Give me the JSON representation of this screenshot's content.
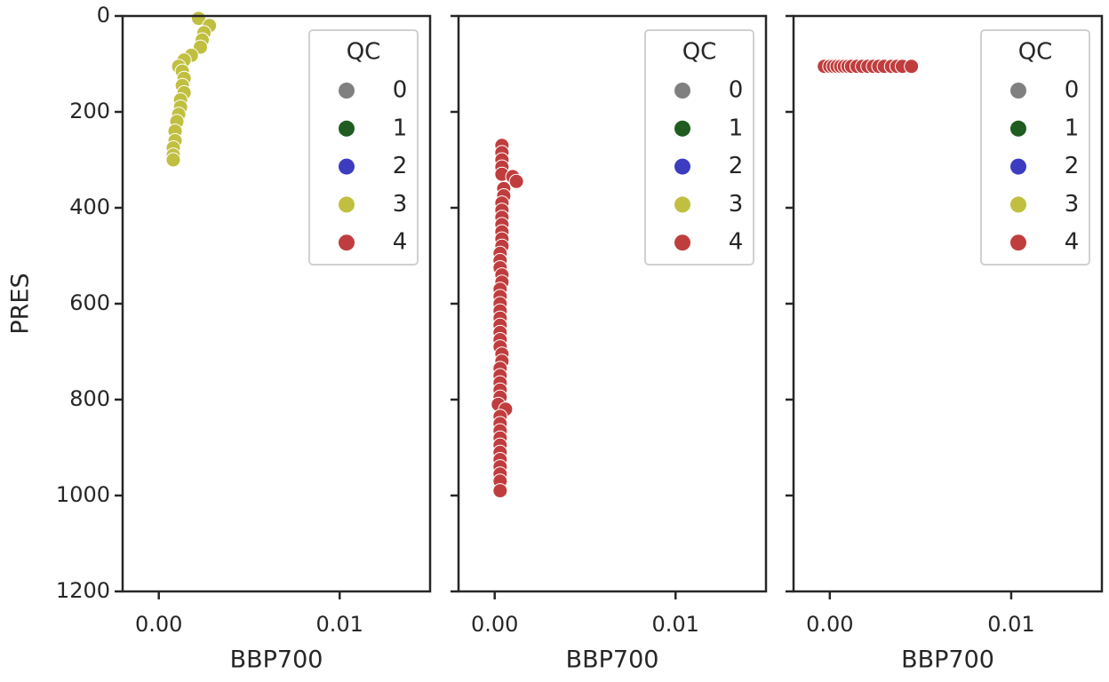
{
  "chart_data": [
    {
      "type": "scatter",
      "xlabel": "BBP700",
      "ylabel": "PRES",
      "legend_title": "QC",
      "legend": "upper right",
      "xlim": [
        -0.002,
        0.015
      ],
      "ylim": [
        1200,
        0
      ],
      "xticks": [
        {
          "value": 0,
          "label": "0.00"
        },
        {
          "value": 0.01,
          "label": "0.01"
        }
      ],
      "yticks": [
        0,
        200,
        400,
        600,
        800,
        1000,
        1200
      ],
      "series": [
        {
          "name": "0",
          "color": "#808080",
          "x": [],
          "y": []
        },
        {
          "name": "1",
          "color": "#1f5c1f",
          "x": [],
          "y": []
        },
        {
          "name": "2",
          "color": "#3c3cc0",
          "x": [],
          "y": []
        },
        {
          "name": "3",
          "color": "#c0bf40",
          "x": [
            0.0022,
            0.0028,
            0.0025,
            0.0024,
            0.0023,
            0.0018,
            0.0014,
            0.0011,
            0.0013,
            0.0014,
            0.0013,
            0.0014,
            0.0012,
            0.0012,
            0.0011,
            0.001,
            0.0009,
            0.0009,
            0.0008,
            0.0008,
            0.0008
          ],
          "y": [
            5,
            20,
            35,
            50,
            65,
            82,
            92,
            105,
            115,
            130,
            145,
            160,
            175,
            190,
            205,
            220,
            240,
            260,
            275,
            290,
            300
          ]
        },
        {
          "name": "4",
          "color": "#c03d3e",
          "x": [],
          "y": []
        }
      ]
    },
    {
      "type": "scatter",
      "xlabel": "BBP700",
      "legend_title": "QC",
      "legend": "upper right",
      "xlim": [
        -0.002,
        0.015
      ],
      "ylim": [
        1200,
        0
      ],
      "xticks": [
        {
          "value": 0,
          "label": "0.00"
        },
        {
          "value": 0.01,
          "label": "0.01"
        }
      ],
      "yticks": [
        0,
        200,
        400,
        600,
        800,
        1000,
        1200
      ],
      "series": [
        {
          "name": "0",
          "color": "#808080",
          "x": [],
          "y": []
        },
        {
          "name": "1",
          "color": "#1f5c1f",
          "x": [],
          "y": []
        },
        {
          "name": "2",
          "color": "#3c3cc0",
          "x": [],
          "y": []
        },
        {
          "name": "3",
          "color": "#c0bf40",
          "x": [],
          "y": []
        },
        {
          "name": "4",
          "color": "#c03d3e",
          "x": [
            0.0004,
            0.0004,
            0.0004,
            0.0004,
            0.0004,
            0.001,
            0.0012,
            0.0005,
            0.0005,
            0.0004,
            0.0004,
            0.0004,
            0.0004,
            0.0004,
            0.0004,
            0.0004,
            0.0003,
            0.0003,
            0.0003,
            0.0004,
            0.0004,
            0.0003,
            0.0003,
            0.0003,
            0.0003,
            0.0003,
            0.0003,
            0.0003,
            0.0003,
            0.0003,
            0.0004,
            0.0004,
            0.0003,
            0.0003,
            0.0003,
            0.0003,
            0.0003,
            0.0002,
            0.0006,
            0.0003,
            0.0003,
            0.0003,
            0.0003,
            0.0003,
            0.0003,
            0.0003,
            0.0003,
            0.0003,
            0.0003,
            0.0003
          ],
          "y": [
            270,
            285,
            300,
            315,
            330,
            335,
            345,
            360,
            375,
            390,
            405,
            420,
            435,
            450,
            465,
            480,
            495,
            510,
            525,
            540,
            555,
            570,
            585,
            600,
            615,
            630,
            645,
            660,
            675,
            690,
            705,
            720,
            735,
            750,
            765,
            780,
            795,
            810,
            820,
            835,
            850,
            865,
            880,
            895,
            910,
            925,
            940,
            955,
            970,
            990
          ]
        }
      ]
    },
    {
      "type": "scatter",
      "xlabel": "BBP700",
      "legend_title": "QC",
      "legend": "upper right",
      "xlim": [
        -0.002,
        0.015
      ],
      "ylim": [
        1200,
        0
      ],
      "xticks": [
        {
          "value": 0,
          "label": "0.00"
        },
        {
          "value": 0.01,
          "label": "0.01"
        }
      ],
      "yticks": [
        0,
        200,
        400,
        600,
        800,
        1000,
        1200
      ],
      "series": [
        {
          "name": "0",
          "color": "#808080",
          "x": [],
          "y": []
        },
        {
          "name": "1",
          "color": "#1f5c1f",
          "x": [],
          "y": []
        },
        {
          "name": "2",
          "color": "#3c3cc0",
          "x": [],
          "y": []
        },
        {
          "name": "3",
          "color": "#c0bf40",
          "x": [],
          "y": []
        },
        {
          "name": "4",
          "color": "#c03d3e",
          "x": [
            -0.0003,
            0.0,
            0.0002,
            0.0004,
            0.0006,
            0.0008,
            0.001,
            0.0012,
            0.0015,
            0.0018,
            0.0021,
            0.0024,
            0.0027,
            0.003,
            0.0034,
            0.0037,
            0.004,
            0.0045
          ],
          "y": [
            105,
            105,
            105,
            105,
            105,
            105,
            105,
            105,
            105,
            105,
            105,
            105,
            105,
            105,
            105,
            105,
            105,
            105
          ]
        }
      ]
    }
  ]
}
